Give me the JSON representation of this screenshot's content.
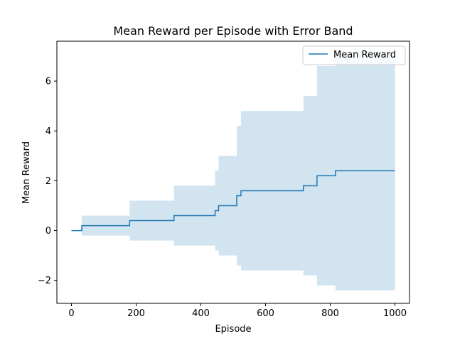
{
  "chart_data": {
    "type": "line",
    "title": "Mean Reward per Episode with Error Band",
    "xlabel": "Episode",
    "ylabel": "Mean Reward",
    "xlim": [
      -45,
      1045
    ],
    "ylim": [
      -2.92,
      7.6
    ],
    "xticks": [
      0,
      200,
      400,
      600,
      800,
      1000
    ],
    "yticks": [
      -2,
      0,
      2,
      4,
      6
    ],
    "xtick_labels": [
      "0",
      "200",
      "400",
      "600",
      "800",
      "1000"
    ],
    "ytick_labels": [
      "−2",
      "0",
      "2",
      "4",
      "6"
    ],
    "grid": false,
    "legend": {
      "position": "top-right",
      "entries": [
        "Mean Reward"
      ]
    },
    "series": [
      {
        "name": "Mean Reward",
        "color": "#1f77b4",
        "band_color": "#1f77b4",
        "band_opacity": 0.2,
        "steps": [
          {
            "x": 0,
            "mean": 0.0,
            "lower": 0.0,
            "upper": 0.0
          },
          {
            "x": 32,
            "mean": 0.2,
            "lower": -0.2,
            "upper": 0.6
          },
          {
            "x": 180,
            "mean": 0.4,
            "lower": -0.4,
            "upper": 1.2
          },
          {
            "x": 317,
            "mean": 0.6,
            "lower": -0.6,
            "upper": 1.8
          },
          {
            "x": 444,
            "mean": 0.8,
            "lower": -0.8,
            "upper": 2.4
          },
          {
            "x": 455,
            "mean": 1.0,
            "lower": -1.0,
            "upper": 3.0
          },
          {
            "x": 511,
            "mean": 1.4,
            "lower": -1.4,
            "upper": 4.2
          },
          {
            "x": 524,
            "mean": 1.6,
            "lower": -1.6,
            "upper": 4.8
          },
          {
            "x": 717,
            "mean": 1.8,
            "lower": -1.8,
            "upper": 5.4
          },
          {
            "x": 759,
            "mean": 2.2,
            "lower": -2.2,
            "upper": 6.6
          },
          {
            "x": 816,
            "mean": 2.4,
            "lower": -2.4,
            "upper": 7.2
          }
        ],
        "x_end": 1000
      }
    ]
  }
}
